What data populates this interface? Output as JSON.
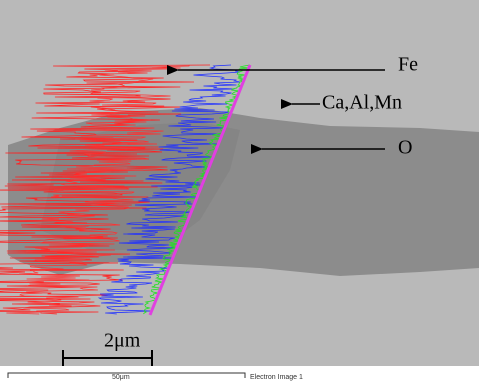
{
  "labels": {
    "fe": "Fe",
    "ca_al_mn": "Ca,Al,Mn",
    "o": "O"
  },
  "scale_bar": "2μm",
  "footer": {
    "scale": "50μm",
    "image_name": "Electron Image 1"
  }
}
